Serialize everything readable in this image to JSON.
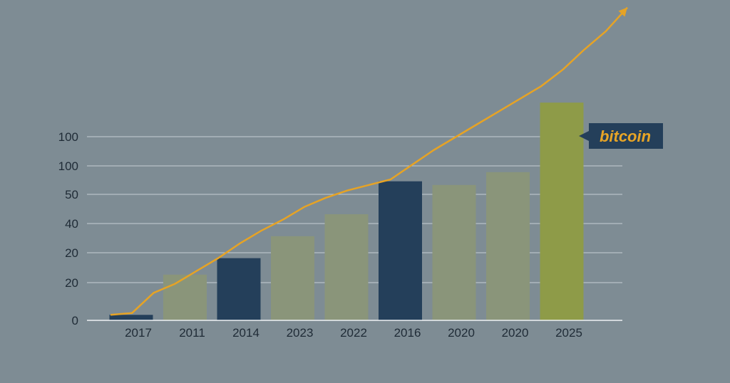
{
  "chart_data": {
    "type": "bar",
    "title": "",
    "xlabel": "",
    "ylabel": "",
    "y_tick_labels": [
      "0",
      "20",
      "20",
      "40",
      "50",
      "100",
      "100"
    ],
    "categories": [
      "2017",
      "2011",
      "2014",
      "2023",
      "2022",
      "2016",
      "2020",
      "2020",
      "2025"
    ],
    "values": [
      3,
      25,
      34,
      46,
      58,
      76,
      74,
      81,
      119
    ],
    "bar_colors": [
      "#243f5a",
      "#8a957a",
      "#243f5a",
      "#8a957a",
      "#8a957a",
      "#243f5a",
      "#8a957a",
      "#8a957a",
      "#8e9b48"
    ],
    "trend_line": {
      "color": "#e6a325",
      "values": [
        3,
        4,
        15,
        20,
        27,
        34,
        42,
        49,
        55,
        62,
        67,
        71,
        74,
        77,
        85,
        93,
        100,
        107,
        114,
        121,
        128,
        137,
        148,
        158,
        171
      ]
    },
    "grid": true,
    "legend": {
      "label": "bitcoin",
      "position": "right"
    }
  }
}
